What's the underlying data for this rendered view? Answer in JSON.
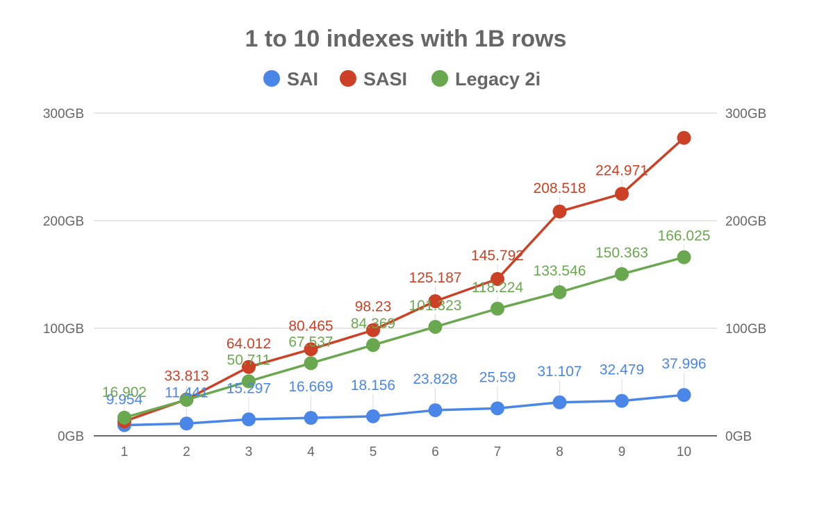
{
  "chart_data": {
    "type": "line",
    "title": "1 to 10 indexes with 1B rows",
    "xlabel": "",
    "ylabel": "",
    "x": [
      "1",
      "2",
      "3",
      "4",
      "5",
      "6",
      "7",
      "8",
      "9",
      "10"
    ],
    "ylim": [
      0,
      300
    ],
    "yticks": [
      0,
      100,
      200,
      300
    ],
    "ytick_labels": [
      "0GB",
      "100GB",
      "200GB",
      "300GB"
    ],
    "legend": "top",
    "grid": true,
    "dual_y_axis_labels": true,
    "series": [
      {
        "name": "SAI",
        "color": "#4a86e8",
        "values": [
          9.954,
          11.441,
          15.297,
          16.669,
          18.156,
          23.828,
          25.59,
          31.107,
          32.479,
          37.996
        ],
        "labels": [
          "9.954",
          "11.441",
          "15.297",
          "16.669",
          "18.156",
          "23.828",
          "25.59",
          "31.107",
          "32.479",
          "37.996"
        ]
      },
      {
        "name": "SASI",
        "color": "#cc4125",
        "values": [
          13.5,
          33.813,
          64.012,
          80.465,
          98.23,
          125.187,
          145.792,
          208.518,
          224.971,
          277
        ],
        "labels": [
          "",
          "33.813",
          "64.012",
          "80.465",
          "98.23",
          "125.187",
          "145.792",
          "208.518",
          "224.971",
          ""
        ]
      },
      {
        "name": "Legacy 2i",
        "color": "#6aa84f",
        "values": [
          16.902,
          33.5,
          50.711,
          67.537,
          84.369,
          101.323,
          118.224,
          133.546,
          150.363,
          166.025
        ],
        "labels": [
          "16.902",
          "",
          "50.711",
          "67.537",
          "84.369",
          "101.323",
          "118.224",
          "133.546",
          "150.363",
          "166.025"
        ]
      }
    ]
  }
}
